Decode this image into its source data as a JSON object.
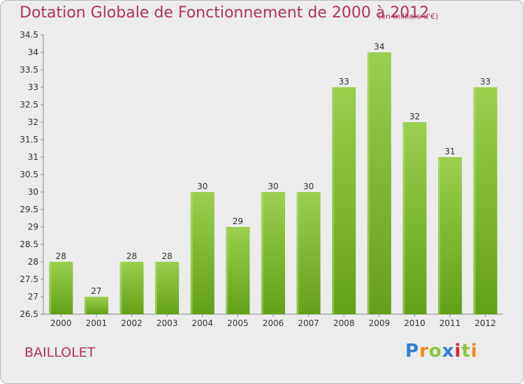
{
  "header": {
    "title": "Dotation Globale de Fonctionnement de 2000 à 2012",
    "subtitle": "(en milliers d'€)"
  },
  "footer": {
    "place": "BAILLOLET",
    "logo_text": "Proxiti"
  },
  "colors": {
    "title": "#b0335f",
    "bar_light": "#9ccf4e",
    "bar_dark": "#63a017",
    "background": "#ececec"
  },
  "chart_data": {
    "type": "bar",
    "title": "Dotation Globale de Fonctionnement de 2000 à 2012",
    "subtitle": "(en milliers d'€)",
    "xlabel": "",
    "ylabel": "",
    "categories": [
      "2000",
      "2001",
      "2002",
      "2003",
      "2004",
      "2005",
      "2006",
      "2007",
      "2008",
      "2009",
      "2010",
      "2011",
      "2012"
    ],
    "values": [
      28,
      27,
      28,
      28,
      30,
      29,
      30,
      30,
      33,
      34,
      32,
      31,
      33
    ],
    "data_labels": [
      "28",
      "27",
      "28",
      "28",
      "30",
      "29",
      "30",
      "30",
      "33",
      "34",
      "32",
      "31",
      "33"
    ],
    "ylim": [
      26.5,
      34.5
    ],
    "yticks": [
      "26.5",
      "27",
      "27.5",
      "28",
      "28.5",
      "29",
      "29.5",
      "30",
      "30.5",
      "31",
      "31.5",
      "32",
      "32.5",
      "33",
      "33.5",
      "34",
      "34.5"
    ],
    "grid": false,
    "legend": "none"
  }
}
